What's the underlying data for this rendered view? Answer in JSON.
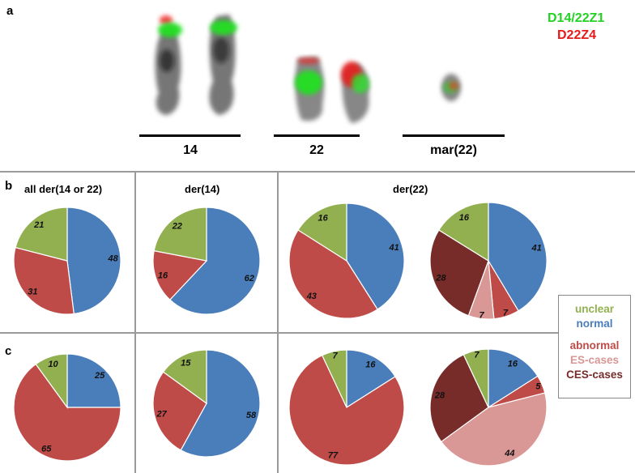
{
  "panels": {
    "a": "a",
    "b": "b",
    "c": "c"
  },
  "probes": [
    {
      "label": "D14/22Z1",
      "color": "#22d322"
    },
    {
      "label": "D22Z4",
      "color": "#e31b1b"
    }
  ],
  "chromosome_labels": [
    "14",
    "22",
    "mar(22)"
  ],
  "column_titles": [
    "all der(14 or 22)",
    "der(14)",
    "der(22)"
  ],
  "legend": [
    {
      "label": "unclear",
      "color": "#92b050"
    },
    {
      "label": "normal",
      "color": "#4a7ebb"
    },
    {
      "label": "abnormal",
      "color": "#be4b48"
    },
    {
      "label": "ES-cases",
      "color": "#d99795"
    },
    {
      "label": "CES-cases",
      "color": "#772c2a"
    }
  ],
  "chart_data": [
    {
      "type": "pie",
      "row": "b",
      "column": "all der(14 or 22)",
      "slices": [
        {
          "category": "normal",
          "value": 48
        },
        {
          "category": "abnormal",
          "value": 31
        },
        {
          "category": "unclear",
          "value": 21
        }
      ]
    },
    {
      "type": "pie",
      "row": "b",
      "column": "der(14)",
      "slices": [
        {
          "category": "normal",
          "value": 62
        },
        {
          "category": "abnormal",
          "value": 16
        },
        {
          "category": "unclear",
          "value": 22
        }
      ]
    },
    {
      "type": "pie",
      "row": "b",
      "column": "der(22)",
      "slices": [
        {
          "category": "normal",
          "value": 41
        },
        {
          "category": "abnormal",
          "value": 43
        },
        {
          "category": "unclear",
          "value": 16
        }
      ]
    },
    {
      "type": "pie",
      "row": "b",
      "column": "der(22)",
      "slices": [
        {
          "category": "normal",
          "value": 41
        },
        {
          "category": "abnormal",
          "value": 7
        },
        {
          "category": "ES-cases",
          "value": 7
        },
        {
          "category": "CES-cases",
          "value": 28
        },
        {
          "category": "unclear",
          "value": 16
        }
      ]
    },
    {
      "type": "pie",
      "row": "c",
      "column": "all der(14 or 22)",
      "slices": [
        {
          "category": "normal",
          "value": 25
        },
        {
          "category": "abnormal",
          "value": 65
        },
        {
          "category": "unclear",
          "value": 10
        }
      ]
    },
    {
      "type": "pie",
      "row": "c",
      "column": "der(14)",
      "slices": [
        {
          "category": "normal",
          "value": 58
        },
        {
          "category": "abnormal",
          "value": 27
        },
        {
          "category": "unclear",
          "value": 15
        }
      ]
    },
    {
      "type": "pie",
      "row": "c",
      "column": "der(22)",
      "slices": [
        {
          "category": "normal",
          "value": 16
        },
        {
          "category": "abnormal",
          "value": 77
        },
        {
          "category": "unclear",
          "value": 7
        }
      ]
    },
    {
      "type": "pie",
      "row": "c",
      "column": "der(22)",
      "slices": [
        {
          "category": "normal",
          "value": 16
        },
        {
          "category": "abnormal",
          "value": 5
        },
        {
          "category": "ES-cases",
          "value": 44
        },
        {
          "category": "CES-cases",
          "value": 28
        },
        {
          "category": "unclear",
          "value": 7
        }
      ]
    }
  ]
}
